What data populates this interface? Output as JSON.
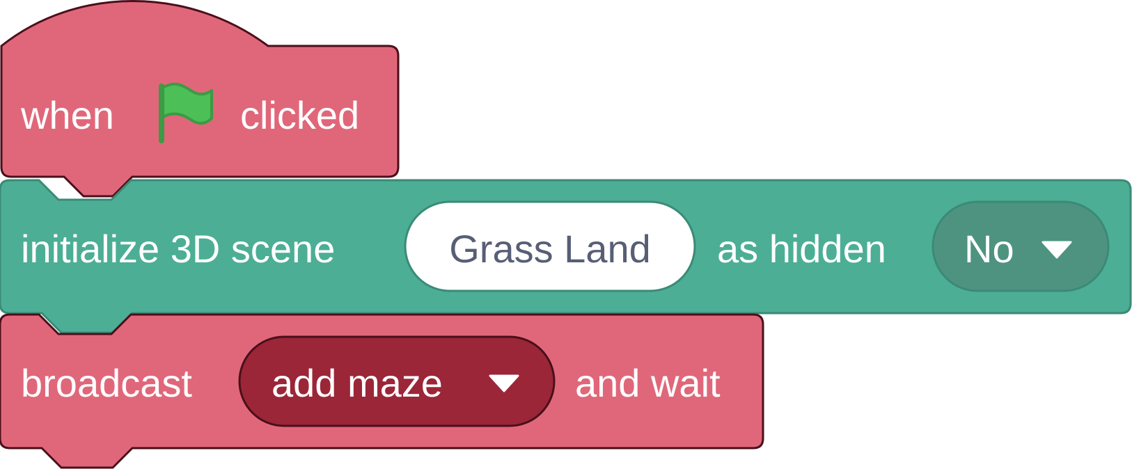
{
  "colors": {
    "events_block": "#e0677a",
    "events_border": "#4a0f1a",
    "events_dropdown": "#9b2638",
    "scene_block": "#4cae95",
    "scene_border": "#3a8a77",
    "scene_dropdown": "#4e9380",
    "text": "#ffffff",
    "input_text": "#575e75",
    "flag": "#4cbf56"
  },
  "script": {
    "hat_block": {
      "when_label": "when",
      "flag_icon": "green-flag-icon",
      "clicked_label": "clicked"
    },
    "init_scene_block": {
      "label": "initialize 3D scene",
      "scene_input": "Grass Land",
      "hidden_label": "as hidden",
      "hidden_dropdown": "No"
    },
    "broadcast_block": {
      "label": "broadcast",
      "message_dropdown": "add maze",
      "suffix_label": "and wait"
    }
  }
}
